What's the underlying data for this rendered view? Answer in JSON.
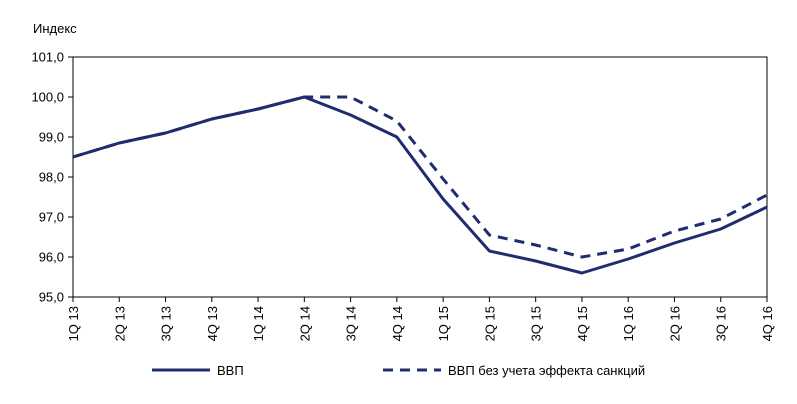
{
  "chart_data": {
    "type": "line",
    "ylabel": "Индекс",
    "ylim": [
      95.0,
      101.0
    ],
    "yticks": [
      "95,0",
      "96,0",
      "97,0",
      "98,0",
      "99,0",
      "100,0",
      "101,0"
    ],
    "categories": [
      "1Q 13",
      "2Q 13",
      "3Q 13",
      "4Q 13",
      "1Q 14",
      "2Q 14",
      "3Q 14",
      "4Q 14",
      "1Q 15",
      "2Q 15",
      "3Q 15",
      "4Q 15",
      "1Q 16",
      "2Q 16",
      "3Q 16",
      "4Q 16"
    ],
    "series": [
      {
        "name": "ВВП",
        "style": "solid",
        "color": "#1f2d6e",
        "values": [
          98.5,
          98.85,
          99.1,
          99.45,
          99.7,
          100.0,
          99.55,
          99.0,
          97.45,
          96.15,
          95.9,
          95.6,
          95.95,
          96.35,
          96.7,
          97.25
        ]
      },
      {
        "name": "ВВП без учета эффекта санкций",
        "style": "dashed",
        "color": "#1f2d6e",
        "values": [
          98.5,
          98.85,
          99.1,
          99.45,
          99.7,
          100.0,
          100.0,
          99.4,
          97.95,
          96.55,
          96.3,
          96.0,
          96.2,
          96.65,
          96.95,
          97.55
        ]
      }
    ],
    "grid": false,
    "legend_position": "bottom"
  }
}
